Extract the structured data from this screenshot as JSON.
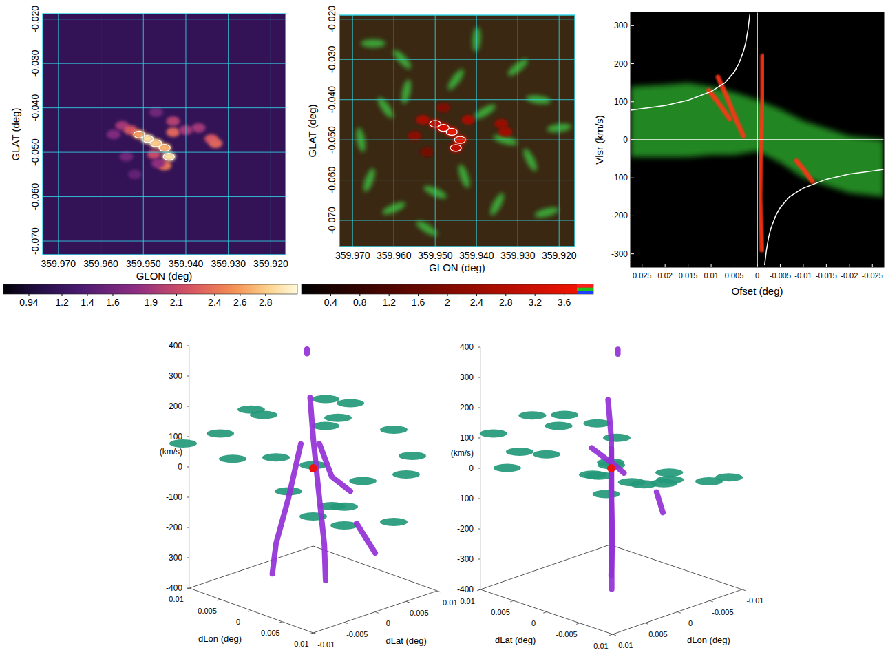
{
  "chart_data": [
    {
      "type": "map",
      "xlabel": "GLON (deg)",
      "ylabel": "GLAT (deg)",
      "xlim": [
        359.9737,
        359.9165
      ],
      "ylim": [
        -0.0731,
        -0.0188
      ],
      "xticks": [
        {
          "value": 359.97,
          "label": "359.970"
        },
        {
          "value": 359.96,
          "label": "359.960"
        },
        {
          "value": 359.95,
          "label": "359.950"
        },
        {
          "value": 359.94,
          "label": "359.940"
        },
        {
          "value": 359.93,
          "label": "359.930"
        },
        {
          "value": 359.92,
          "label": "359.920"
        }
      ],
      "yticks": [
        {
          "value": -0.02,
          "label": "-0.020"
        },
        {
          "value": -0.03,
          "label": "-0.030"
        },
        {
          "value": -0.04,
          "label": "-0.040"
        },
        {
          "value": -0.05,
          "label": "-0.050"
        },
        {
          "value": -0.06,
          "label": "-0.060"
        },
        {
          "value": -0.07,
          "label": "-0.070"
        }
      ],
      "grid": true,
      "colorbar": {
        "range": [
          0.74,
          3.05
        ],
        "ticks": [
          0.94,
          1.2,
          1.4,
          1.6,
          1.9,
          2.1,
          2.4,
          2.6,
          2.8
        ]
      },
      "background": 1.15,
      "sources": {
        "lon": [
          359.955,
          359.953,
          359.951,
          359.949,
          359.947,
          359.945,
          359.944,
          359.945,
          359.943,
          359.943,
          359.94,
          359.937,
          359.934,
          359.933,
          359.957,
          359.954,
          359.952,
          359.947,
          359.9475,
          359.9465
        ],
        "lat": [
          -0.044,
          -0.045,
          -0.046,
          -0.047,
          -0.048,
          -0.049,
          -0.051,
          -0.053,
          -0.0455,
          -0.043,
          -0.045,
          -0.0445,
          -0.047,
          -0.048,
          -0.046,
          -0.051,
          -0.055,
          -0.041,
          -0.0505,
          -0.0525
        ],
        "values": [
          1.9,
          2.2,
          2.6,
          2.9,
          2.8,
          2.7,
          2.9,
          2.4,
          2.3,
          2.0,
          1.9,
          1.9,
          2.2,
          2.3,
          1.7,
          1.6,
          1.5,
          1.6,
          2.1,
          1.8
        ]
      }
    },
    {
      "type": "map",
      "xlabel": "GLON (deg)",
      "ylabel": "GLAT (deg)",
      "xlim": [
        359.9732,
        359.9162
      ],
      "ylim": [
        -0.0765,
        -0.019
      ],
      "xticks": [
        {
          "value": 359.97,
          "label": "359.970"
        },
        {
          "value": 359.96,
          "label": "359.960"
        },
        {
          "value": 359.95,
          "label": "359.950"
        },
        {
          "value": 359.94,
          "label": "359.940"
        },
        {
          "value": 359.93,
          "label": "359.930"
        },
        {
          "value": 359.92,
          "label": "359.920"
        }
      ],
      "yticks": [
        {
          "value": -0.02,
          "label": "-0.020"
        },
        {
          "value": -0.03,
          "label": "-0.030"
        },
        {
          "value": -0.04,
          "label": "-0.040"
        },
        {
          "value": -0.05,
          "label": "-0.050"
        },
        {
          "value": -0.06,
          "label": "-0.060"
        },
        {
          "value": -0.07,
          "label": "-0.070"
        }
      ],
      "grid": true,
      "colorbar": {
        "range": [
          0,
          4
        ],
        "ticks": [
          0.4,
          0.8,
          1.2,
          1.6,
          2,
          2.4,
          2.8,
          3.2,
          3.6
        ]
      },
      "green": {
        "lon": [
          359.965,
          359.958,
          359.94,
          359.93,
          359.925,
          359.962,
          359.957,
          359.938,
          359.933,
          359.927,
          359.966,
          359.96,
          359.95,
          359.943,
          359.935,
          359.923,
          359.952,
          359.968,
          359.945,
          359.92
        ],
        "lat": [
          -0.026,
          -0.03,
          -0.025,
          -0.032,
          -0.04,
          -0.042,
          -0.038,
          -0.043,
          -0.05,
          -0.055,
          -0.06,
          -0.067,
          -0.063,
          -0.059,
          -0.066,
          -0.068,
          -0.072,
          -0.05,
          -0.035,
          -0.047
        ]
      },
      "sources": {
        "lon": [
          359.953,
          359.95,
          359.948,
          359.946,
          359.944,
          359.945,
          359.942,
          359.934,
          359.933,
          359.955,
          359.948,
          359.952
        ],
        "lat": [
          -0.045,
          -0.046,
          -0.047,
          -0.048,
          -0.05,
          -0.052,
          -0.045,
          -0.046,
          -0.048,
          -0.049,
          -0.042,
          -0.053
        ],
        "values": [
          2.6,
          3.0,
          3.4,
          3.6,
          3.5,
          3.0,
          2.6,
          2.4,
          2.5,
          2.2,
          2.0,
          1.8
        ]
      }
    },
    {
      "type": "pv",
      "xlabel": "Ofset (deg)",
      "ylabel": "Vlsr (km/s)",
      "xlim": [
        0.0275,
        -0.0275
      ],
      "ylim": [
        -335,
        335
      ],
      "xticks": [
        0.025,
        0.02,
        0.015,
        0.01,
        0.005,
        0,
        -0.005,
        -0.01,
        -0.015,
        -0.02,
        -0.025
      ],
      "yticks": [
        -300,
        -200,
        -100,
        0,
        100,
        200,
        300
      ],
      "green_band": {
        "x": [
          0.0275,
          0.02,
          0.015,
          0.01,
          0.005,
          0,
          -0.005,
          -0.01,
          -0.015,
          -0.02,
          -0.0275
        ],
        "upper": [
          140,
          145,
          150,
          140,
          125,
          105,
          80,
          50,
          30,
          10,
          0
        ],
        "lower": [
          -45,
          -45,
          -45,
          -40,
          -40,
          -30,
          -60,
          -100,
          -120,
          -140,
          -150
        ]
      },
      "red_features": [
        {
          "x": [
            -0.0012,
            -0.0012,
            -0.0008,
            -0.0006,
            -0.001
          ],
          "v": [
            220,
            100,
            0,
            -150,
            -290
          ]
        },
        {
          "x": [
            0.0085,
            0.0065,
            0.0045,
            0.003
          ],
          "v": [
            165,
            110,
            50,
            10
          ]
        },
        {
          "x": [
            0.0105,
            0.008,
            0.006
          ],
          "v": [
            130,
            90,
            55
          ]
        },
        {
          "x": [
            -0.0085,
            -0.0105,
            -0.012
          ],
          "v": [
            -55,
            -85,
            -110
          ]
        }
      ],
      "curves": [
        {
          "x": [
            0.0275,
            0.02,
            0.015,
            0.01,
            0.007,
            0.005,
            0.004,
            0.003,
            0.0025,
            0.002,
            0.0016
          ],
          "v": [
            78,
            90,
            104,
            127,
            150,
            178,
            200,
            232,
            255,
            290,
            330
          ]
        },
        {
          "x": [
            -0.0016,
            -0.002,
            -0.0025,
            -0.003,
            -0.004,
            -0.005,
            -0.007,
            -0.01,
            -0.015,
            -0.02,
            -0.0275
          ],
          "v": [
            -330,
            -290,
            -255,
            -232,
            -200,
            -178,
            -150,
            -127,
            -104,
            -90,
            -78
          ]
        }
      ],
      "reference_lines": {
        "x": 0,
        "v": 0
      }
    },
    {
      "type": "scatter3d",
      "xlabel": "dLon (deg)",
      "ylabel": "dLat (deg)",
      "zlabel": "(km/s)",
      "xlim": [
        -0.01,
        0.01
      ],
      "ylim": [
        -0.01,
        0.01
      ],
      "zlim": [
        -400,
        400
      ],
      "xticks": [
        0.01,
        0.005,
        0,
        -0.005,
        -0.01
      ],
      "yticks": [
        0.01,
        0.005,
        0,
        -0.005,
        -0.01
      ],
      "zticks": [
        400,
        300,
        200,
        100,
        0,
        -100,
        -200,
        -300,
        -400
      ],
      "streams": [
        {
          "dlon": [
            0.0005,
            0,
            -0.0005,
            -0.001,
            -0.001
          ],
          "dlat": [
            0,
            0,
            0.0005,
            0.0008,
            0.001
          ],
          "v": [
            230,
            100,
            -100,
            -250,
            -370
          ]
        },
        {
          "dlon": [
            0.001,
            0.002,
            0.003,
            0.0033
          ],
          "dlat": [
            -0.001,
            -0.002,
            -0.003,
            -0.0033
          ],
          "v": [
            80,
            -100,
            -250,
            -350
          ]
        },
        {
          "dlon": [
            -0.007,
            -0.008,
            -0.009
          ],
          "dlat": [
            0,
            0.0005,
            0.001
          ],
          "v": [
            -130,
            -175,
            -220
          ]
        },
        {
          "dlon": [
            0.001,
            -0.002,
            -0.004
          ],
          "dlat": [
            0.002,
            0.001,
            0.002
          ],
          "v": [
            60,
            -20,
            -60
          ]
        },
        {
          "dlon": [
            0,
            0
          ],
          "dlat": [
            -0.001,
            -0.001
          ],
          "v": [
            385,
            400
          ]
        }
      ],
      "clouds": {
        "dlon": [
          0.012,
          0.009,
          0.006,
          0.004,
          0.002,
          -0.002,
          -0.004,
          -0.006,
          -0.008,
          -0.01,
          -0.003,
          0.008,
          -0.011,
          0.011,
          0,
          0.005,
          -0.007,
          0.01,
          -0.009,
          0.003,
          -0.005
        ],
        "dlat": [
          0.004,
          -0.006,
          0.008,
          -0.002,
          0.006,
          -0.006,
          0.004,
          -0.003,
          0.007,
          -0.005,
          0.01,
          0.01,
          0.002,
          -0.01,
          0,
          -0.008,
          0.009,
          0,
          -0.009,
          0.009,
          0
        ],
        "v": [
          60,
          90,
          40,
          20,
          110,
          -20,
          -40,
          -60,
          -10,
          -80,
          80,
          100,
          -110,
          70,
          10,
          50,
          30,
          120,
          -30,
          130,
          -90
        ]
      },
      "center": {
        "dlon": 0,
        "dlat": 0,
        "v": 0
      }
    },
    {
      "type": "scatter3d",
      "xlabel": "dLon (deg)",
      "ylabel": "dLat (deg)",
      "zlabel": "(km/s)",
      "xlim": [
        -0.01,
        0.01
      ],
      "ylim": [
        -0.01,
        0.01
      ],
      "zlim": [
        -400,
        400
      ],
      "xticks": [
        0.01,
        0.005,
        0,
        -0.005,
        -0.01
      ],
      "yticks": [
        0.01,
        0.005,
        0,
        -0.005,
        -0.01
      ],
      "zticks": [
        400,
        300,
        200,
        100,
        0,
        -100,
        -200,
        -300,
        -400
      ],
      "streams": [
        {
          "dlon": [
            0.0005,
            0,
            -0.0005,
            -0.001,
            -0.001
          ],
          "dlat": [
            0,
            0,
            0.0005,
            0.0008,
            0.001
          ],
          "v": [
            230,
            100,
            -100,
            -250,
            -370
          ]
        },
        {
          "dlon": [
            0.001,
            0.002,
            0.003,
            0.0033
          ],
          "dlat": [
            -0.001,
            -0.002,
            -0.003,
            -0.0033
          ],
          "v": [
            80,
            -100,
            -250,
            -350
          ]
        },
        {
          "dlon": [
            -0.007,
            -0.008,
            -0.009
          ],
          "dlat": [
            0,
            0.0005,
            0.001
          ],
          "v": [
            -130,
            -175,
            -220
          ]
        },
        {
          "dlon": [
            0.001,
            -0.002,
            -0.004
          ],
          "dlat": [
            0.002,
            0.001,
            0.002
          ],
          "v": [
            60,
            -20,
            -60
          ]
        },
        {
          "dlon": [
            0,
            0
          ],
          "dlat": [
            -0.001,
            -0.001
          ],
          "v": [
            385,
            400
          ]
        }
      ],
      "clouds": {
        "dlon": [
          0.012,
          0.009,
          0.006,
          0.004,
          0.002,
          -0.002,
          -0.004,
          -0.006,
          -0.008,
          -0.01,
          -0.003,
          0.008,
          -0.011,
          0.011,
          0,
          0.005,
          -0.007,
          0.01,
          -0.009,
          0.003,
          -0.005
        ],
        "dlat": [
          0.004,
          -0.006,
          0.008,
          -0.002,
          0.006,
          -0.006,
          0.004,
          -0.003,
          0.007,
          -0.005,
          0.01,
          0.01,
          0.002,
          -0.01,
          0,
          -0.008,
          0.009,
          0,
          -0.009,
          0.009,
          0
        ],
        "v": [
          60,
          90,
          40,
          20,
          110,
          -20,
          -40,
          -60,
          -10,
          -80,
          80,
          100,
          -110,
          70,
          10,
          50,
          30,
          120,
          -30,
          130,
          -90
        ]
      },
      "center": {
        "dlon": 0,
        "dlat": 0,
        "v": 0
      }
    }
  ]
}
